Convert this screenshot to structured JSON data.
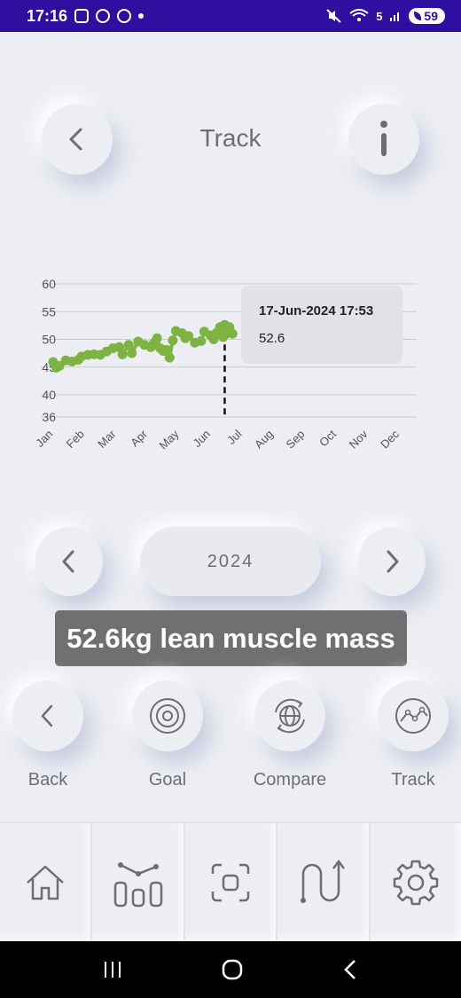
{
  "status_bar": {
    "time": "17:16",
    "battery": "59",
    "signal_label": "5"
  },
  "header": {
    "title": "Track",
    "back_icon": "chevron-left-icon",
    "info_icon": "info-icon"
  },
  "chart_data": {
    "type": "line",
    "title": "",
    "xlabel": "",
    "ylabel": "",
    "categories": [
      "Jan",
      "Feb",
      "Mar",
      "Apr",
      "May",
      "Jun",
      "Jul",
      "Aug",
      "Sep",
      "Oct",
      "Nov",
      "Dec"
    ],
    "y_ticks": [
      36,
      40,
      45,
      50,
      55,
      60
    ],
    "ylim": [
      36,
      60
    ],
    "grid": true,
    "series": [
      {
        "color": "#7cb342",
        "points": [
          {
            "x": 0.1,
            "y": 45.9
          },
          {
            "x": 0.2,
            "y": 44.9
          },
          {
            "x": 0.3,
            "y": 45.2
          },
          {
            "x": 0.5,
            "y": 46.2
          },
          {
            "x": 0.7,
            "y": 46.0
          },
          {
            "x": 0.9,
            "y": 46.3
          },
          {
            "x": 1.0,
            "y": 46.9
          },
          {
            "x": 1.2,
            "y": 47.2
          },
          {
            "x": 1.4,
            "y": 47.3
          },
          {
            "x": 1.6,
            "y": 47.2
          },
          {
            "x": 1.8,
            "y": 47.8
          },
          {
            "x": 2.0,
            "y": 48.4
          },
          {
            "x": 2.2,
            "y": 48.6
          },
          {
            "x": 2.3,
            "y": 47.3
          },
          {
            "x": 2.5,
            "y": 49.0
          },
          {
            "x": 2.6,
            "y": 47.5
          },
          {
            "x": 2.8,
            "y": 49.6
          },
          {
            "x": 3.0,
            "y": 49.0
          },
          {
            "x": 3.2,
            "y": 48.6
          },
          {
            "x": 3.3,
            "y": 49.3
          },
          {
            "x": 3.4,
            "y": 50.2
          },
          {
            "x": 3.5,
            "y": 48.4
          },
          {
            "x": 3.6,
            "y": 47.9
          },
          {
            "x": 3.7,
            "y": 48.1
          },
          {
            "x": 3.8,
            "y": 46.7
          },
          {
            "x": 3.9,
            "y": 49.8
          },
          {
            "x": 4.0,
            "y": 51.5
          },
          {
            "x": 4.2,
            "y": 51.1
          },
          {
            "x": 4.3,
            "y": 50.2
          },
          {
            "x": 4.4,
            "y": 50.6
          },
          {
            "x": 4.6,
            "y": 49.4
          },
          {
            "x": 4.8,
            "y": 49.7
          },
          {
            "x": 4.9,
            "y": 51.4
          },
          {
            "x": 5.1,
            "y": 50.7
          },
          {
            "x": 5.2,
            "y": 50.0
          },
          {
            "x": 5.3,
            "y": 51.2
          },
          {
            "x": 5.4,
            "y": 52.2
          },
          {
            "x": 5.5,
            "y": 50.4
          },
          {
            "x": 5.6,
            "y": 51.0
          },
          {
            "x": 5.7,
            "y": 52.2
          },
          {
            "x": 5.8,
            "y": 51.0
          },
          {
            "x": 5.55,
            "y": 52.6
          }
        ]
      }
    ],
    "tooltip": {
      "date": "17-Jun-2024 17:53",
      "value": "52.6",
      "x": 5.55,
      "y": 52.6
    }
  },
  "year_selector": {
    "year": "2024",
    "prev_icon": "chevron-left-icon",
    "next_icon": "chevron-right-icon"
  },
  "toast": {
    "message": "52.6kg lean muscle mass"
  },
  "actions": [
    {
      "label": "Back",
      "icon": "chevron-left-icon"
    },
    {
      "label": "Goal",
      "icon": "target-icon"
    },
    {
      "label": "Compare",
      "icon": "globe-sync-icon"
    },
    {
      "label": "Track",
      "icon": "trend-chart-icon"
    }
  ],
  "bottom_nav": [
    {
      "icon": "home-icon"
    },
    {
      "icon": "stats-icon"
    },
    {
      "icon": "scan-icon"
    },
    {
      "icon": "route-icon"
    },
    {
      "icon": "settings-icon"
    }
  ],
  "system_nav": {
    "recents_icon": "recents-icon",
    "home_icon": "home-circle-icon",
    "back_icon": "back-arrow-icon"
  }
}
